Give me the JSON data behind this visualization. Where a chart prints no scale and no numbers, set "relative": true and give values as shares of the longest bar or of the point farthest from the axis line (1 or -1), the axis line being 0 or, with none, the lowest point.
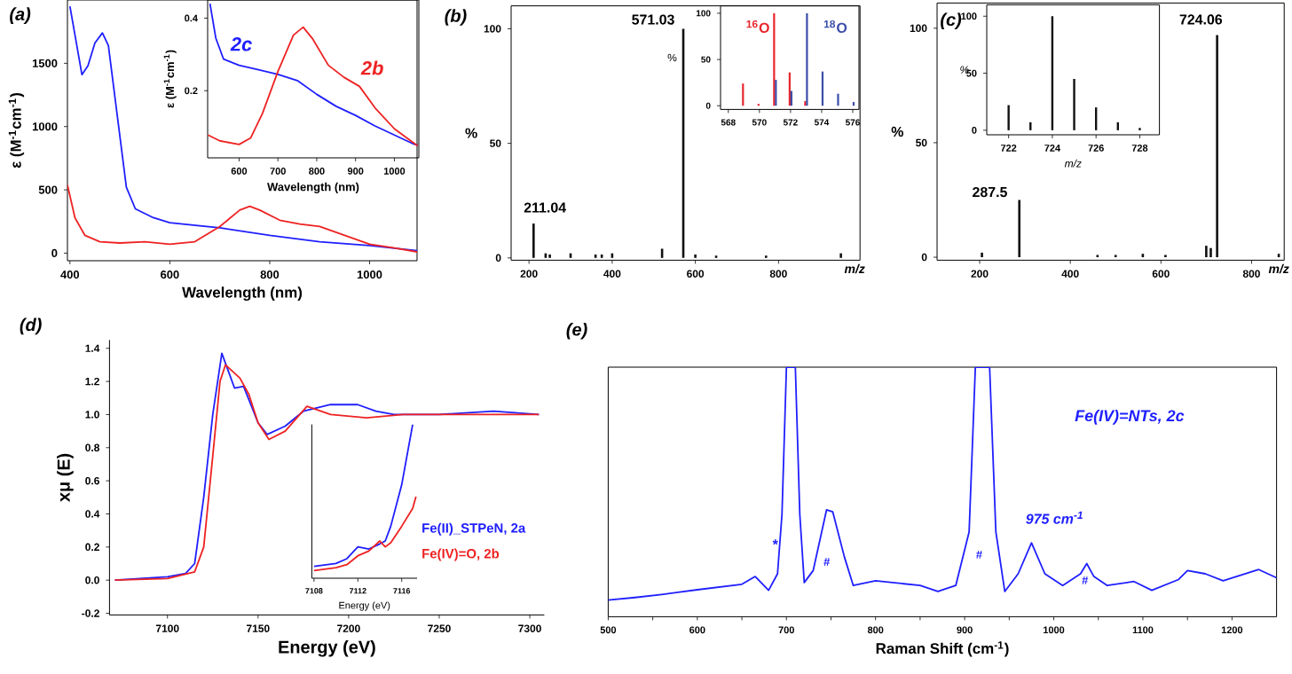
{
  "chart_data": [
    {
      "type": "line",
      "xlabel": "Wavelength (nm)",
      "ylabel": "ε (M$^{-1}$cm$^{-1}$)",
      "annotations": [
        "(a)"
      ],
      "xlim": [
        395,
        1095
      ],
      "ylim": [
        -60,
        2000
      ],
      "xticks": [
        400,
        600,
        800,
        1000
      ],
      "yticks": [
        0,
        500,
        1000,
        1500
      ],
      "series": [
        {
          "color": "#1f1fff",
          "x": [
            400,
            424,
            436,
            450,
            465,
            477,
            495,
            513,
            531,
            567,
            600,
            700,
            800,
            900,
            1000,
            1095
          ],
          "values": [
            1950,
            1410,
            1480,
            1660,
            1740,
            1640,
            1080,
            520,
            350,
            280,
            240,
            200,
            140,
            90,
            60,
            20
          ]
        },
        {
          "color": "#ee2222",
          "x": [
            395,
            410,
            430,
            460,
            500,
            550,
            600,
            650,
            700,
            740,
            760,
            780,
            820,
            860,
            900,
            950,
            1000,
            1050,
            1095
          ],
          "values": [
            540,
            280,
            140,
            90,
            80,
            90,
            70,
            90,
            210,
            340,
            370,
            340,
            260,
            230,
            210,
            140,
            70,
            40,
            10
          ]
        }
      ]
    },
    {
      "type": "line",
      "xlabel": "Wavelength (nm)",
      "ylabel": "ε (M$^{-1}$cm$^{-1}$)",
      "xlim": [
        519,
        1063
      ],
      "ylim": [
        0.015,
        0.45
      ],
      "xticks": [
        600,
        700,
        800,
        900,
        1000
      ],
      "yticks": [
        0.2,
        0.4
      ],
      "series": [
        {
          "name": "2c",
          "color": "#1f1fff",
          "x": [
            525,
            540,
            560,
            600,
            650,
            700,
            750,
            800,
            850,
            900,
            950,
            1000,
            1050,
            1060
          ],
          "values": [
            0.44,
            0.345,
            0.287,
            0.27,
            0.258,
            0.245,
            0.228,
            0.19,
            0.157,
            0.132,
            0.103,
            0.078,
            0.053,
            0.05
          ]
        },
        {
          "name": "2b",
          "color": "#ee2222",
          "x": [
            520,
            550,
            600,
            630,
            660,
            700,
            740,
            765,
            790,
            830,
            870,
            910,
            950,
            1000,
            1060
          ],
          "values": [
            0.078,
            0.062,
            0.052,
            0.07,
            0.137,
            0.253,
            0.353,
            0.375,
            0.342,
            0.27,
            0.237,
            0.212,
            0.153,
            0.095,
            0.048
          ]
        }
      ]
    },
    {
      "type": "bar",
      "xlabel": "m/z",
      "ylabel": "%",
      "annotations": [
        "(b)",
        "571.03",
        "211.04"
      ],
      "xlim": [
        157,
        996
      ],
      "ylim": [
        -1,
        110
      ],
      "xticks": [
        200,
        400,
        600,
        800
      ],
      "yticks": [
        0,
        50,
        100
      ],
      "series": [
        {
          "color": "#111111",
          "x": [
            211,
            240,
            250,
            300,
            360,
            375,
            400,
            520,
            571,
            600,
            650,
            770,
            950
          ],
          "values": [
            15,
            2,
            1.5,
            2,
            1.5,
            1.5,
            2,
            4,
            100,
            1.5,
            1,
            1,
            2
          ]
        }
      ]
    },
    {
      "type": "bar",
      "ylabel": "%",
      "xlim": [
        567.5,
        576.4
      ],
      "ylim": [
        -4,
        108
      ],
      "xticks": [
        568,
        570,
        572,
        574,
        576
      ],
      "yticks": [
        0,
        50,
        100
      ],
      "series": [
        {
          "name": "$^{16}$O",
          "color": "#e8262d",
          "x": [
            569,
            570,
            571,
            572,
            573
          ],
          "values": [
            24,
            2,
            100,
            36,
            5
          ]
        },
        {
          "name": "$^{18}$O",
          "color": "#3b4ea8",
          "x": [
            571,
            572,
            573,
            574,
            575,
            576
          ],
          "values": [
            28,
            16,
            100,
            37,
            13,
            4
          ]
        }
      ]
    },
    {
      "type": "bar",
      "xlabel": "m/z",
      "ylabel": "%",
      "annotations": [
        "(c)",
        "724.06",
        "287.5"
      ],
      "xlim": [
        106,
        872
      ],
      "ylim": [
        -1.3,
        111
      ],
      "xticks": [
        200,
        400,
        600,
        800
      ],
      "yticks": [
        0,
        50,
        100
      ],
      "series": [
        {
          "color": "#111111",
          "x": [
            205,
            287.5,
            460,
            500,
            560,
            610,
            700,
            710,
            724,
            860
          ],
          "values": [
            2,
            25,
            1,
            1,
            1.5,
            1,
            5,
            4,
            97,
            1.5
          ]
        }
      ]
    },
    {
      "type": "bar",
      "xlabel": "m/z",
      "ylabel": "%",
      "xlim": [
        721,
        728.9
      ],
      "ylim": [
        -4,
        110
      ],
      "xticks": [
        722,
        724,
        726,
        728
      ],
      "yticks": [
        0,
        50,
        100
      ],
      "x": [
        722,
        723,
        724,
        725,
        726,
        727,
        728
      ],
      "values": [
        22,
        7,
        100,
        45,
        20,
        7,
        2
      ],
      "color": "#111111"
    },
    {
      "type": "line",
      "xlabel": "Energy (eV)",
      "ylabel": "xμ (E)",
      "annotations": [
        "(d)"
      ],
      "xlim": [
        7068,
        7308
      ],
      "ylim": [
        -0.21,
        1.45
      ],
      "xticks": [
        7100,
        7150,
        7200,
        7250,
        7300
      ],
      "yticks": [
        -0.2,
        {
          "value": 0,
          "label": "0.0"
        },
        0.2,
        0.4,
        0.6,
        0.8,
        {
          "value": 1,
          "label": "1.0"
        },
        1.2,
        1.4
      ],
      "series": [
        {
          "name": "Fe(II)_STPeN, 2a",
          "color": "#1f1fff",
          "x": [
            7071,
            7100,
            7110,
            7115,
            7120,
            7125,
            7130,
            7133,
            7137,
            7142,
            7150,
            7155,
            7165,
            7175,
            7190,
            7205,
            7215,
            7225,
            7250,
            7280,
            7305
          ],
          "values": [
            0.0,
            0.02,
            0.04,
            0.1,
            0.5,
            1.0,
            1.37,
            1.28,
            1.16,
            1.17,
            0.95,
            0.88,
            0.93,
            1.02,
            1.06,
            1.06,
            1.02,
            1.0,
            1.0,
            1.02,
            1.0
          ]
        },
        {
          "name": "Fe(IV)=O, 2b",
          "color": "#ee2222",
          "x": [
            7071,
            7100,
            7115,
            7120,
            7125,
            7129,
            7132,
            7140,
            7145,
            7150,
            7156,
            7165,
            7177,
            7190,
            7210,
            7230,
            7260,
            7305
          ],
          "values": [
            0.0,
            0.01,
            0.05,
            0.2,
            0.75,
            1.2,
            1.3,
            1.22,
            1.12,
            0.95,
            0.85,
            0.9,
            1.05,
            1.0,
            0.98,
            1.0,
            1.0,
            1.0
          ]
        }
      ]
    },
    {
      "type": "line",
      "xlabel": "Energy (eV)",
      "relative": true,
      "xlim": [
        7107.8,
        7117.4
      ],
      "xticks": [
        7108,
        7112,
        7116
      ],
      "series": [
        {
          "color": "#1f1fff",
          "x": [
            7108,
            7110,
            7111,
            7112,
            7113,
            7114,
            7114.5,
            7115,
            7116,
            7117
          ],
          "values": [
            0.077,
            0.096,
            0.127,
            0.204,
            0.19,
            0.223,
            0.242,
            0.338,
            0.608,
            1
          ]
        },
        {
          "color": "#ee2222",
          "x": [
            7108,
            7110,
            7111,
            7112,
            7113,
            7114,
            7114.5,
            7115,
            7116,
            7117,
            7117.3
          ],
          "values": [
            0.05,
            0.069,
            0.088,
            0.146,
            0.177,
            0.242,
            0.204,
            0.231,
            0.338,
            0.454,
            0.53
          ]
        }
      ]
    },
    {
      "type": "line",
      "xlabel": "Raman Shift (cm$^{-1}$)",
      "relative": true,
      "annotations": [
        "(e)",
        {
          "text": "975 cm$^{-1}$",
          "x": 975,
          "y": 0.296
        },
        {
          "text": "*",
          "x": 700,
          "y": 0.29
        },
        "#",
        "#",
        {
          "text": "#",
          "x": 1035,
          "y": 0.146
        }
      ],
      "xlim": [
        500,
        1250
      ],
      "xticks": [
        500,
        {
          "value": 550,
          "label": null
        },
        600,
        {
          "value": 650,
          "label": null
        },
        700,
        {
          "value": 750,
          "label": null
        },
        800,
        {
          "value": 850,
          "label": null
        },
        900,
        {
          "value": 950,
          "label": null
        },
        1000,
        {
          "value": 1050,
          "label": null
        },
        1100,
        {
          "value": 1150,
          "label": null
        },
        1200
      ],
      "series": [
        {
          "name": "Fe(IV)=NTs, 2c",
          "color": "#1f1fff",
          "x": [
            500,
            530,
            560,
            600,
            650,
            665,
            680,
            690,
            695,
            700,
            710,
            715,
            720,
            730,
            745,
            752,
            765,
            775,
            800,
            850,
            870,
            890,
            905,
            912,
            928,
            935,
            945,
            960,
            975,
            990,
            1010,
            1030,
            1037,
            1045,
            1060,
            1090,
            1110,
            1140,
            1150,
            1170,
            1190,
            1230,
            1250
          ],
          "values": [
            0.067,
            0.077,
            0.089,
            0.108,
            0.13,
            0.161,
            0.106,
            0.172,
            0.41,
            1,
            1,
            0.41,
            0.137,
            0.185,
            0.428,
            0.42,
            0.24,
            0.125,
            0.144,
            0.125,
            0.101,
            0.125,
            0.34,
            1,
            1,
            0.34,
            0.101,
            0.172,
            0.296,
            0.172,
            0.125,
            0.172,
            0.213,
            0.161,
            0.125,
            0.141,
            0.106,
            0.149,
            0.185,
            0.172,
            0.144,
            0.189,
            0.156
          ]
        }
      ]
    }
  ]
}
